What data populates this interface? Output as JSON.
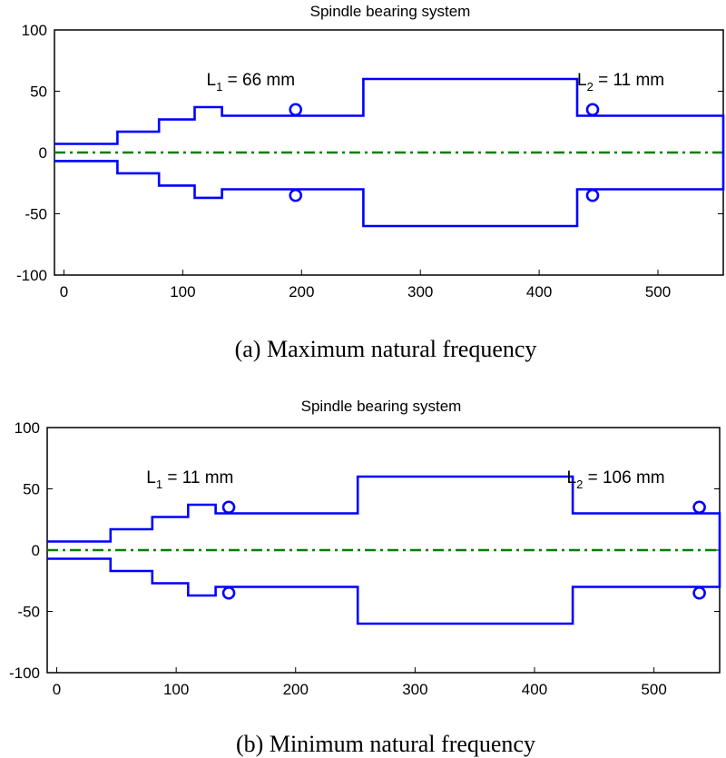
{
  "chart_data": [
    {
      "type": "line",
      "title": "Spindle bearing system",
      "caption": "(a) Maximum natural frequency",
      "xlim": [
        -8,
        555
      ],
      "ylim": [
        -100,
        100
      ],
      "xticks": [
        0,
        100,
        200,
        300,
        400,
        500
      ],
      "yticks": [
        -100,
        -50,
        0,
        50,
        100
      ],
      "shaft_profile": {
        "x": [
          -8,
          45,
          45,
          80,
          80,
          110,
          110,
          133,
          133,
          252,
          252,
          432,
          432,
          555,
          555
        ],
        "y": [
          7,
          7,
          17,
          17,
          27,
          27,
          37,
          37,
          30,
          30,
          60,
          60,
          30,
          30,
          0
        ]
      },
      "bearings_x": [
        195,
        445
      ],
      "bearing_y": 35,
      "centerline_y": 0,
      "annotations": [
        {
          "base": "L",
          "sub": "1",
          "rest": " = 66 mm",
          "x": 120,
          "y": 55
        },
        {
          "base": "L",
          "sub": "2",
          "rest": " = 11 mm",
          "x": 432,
          "y": 55
        }
      ],
      "colors": {
        "shaft": "#0000ff",
        "centerline": "#007f00"
      }
    },
    {
      "type": "line",
      "title": "Spindle bearing system",
      "caption": "(b) Minimum natural frequency",
      "xlim": [
        -8,
        555
      ],
      "ylim": [
        -100,
        100
      ],
      "xticks": [
        0,
        100,
        200,
        300,
        400,
        500
      ],
      "yticks": [
        -100,
        -50,
        0,
        50,
        100
      ],
      "shaft_profile": {
        "x": [
          -8,
          45,
          45,
          80,
          80,
          110,
          110,
          133,
          133,
          252,
          252,
          432,
          432,
          555,
          555
        ],
        "y": [
          7,
          7,
          17,
          17,
          27,
          27,
          37,
          37,
          30,
          30,
          60,
          60,
          30,
          30,
          0
        ]
      },
      "bearings_x": [
        144,
        538
      ],
      "bearing_y": 35,
      "centerline_y": 0,
      "annotations": [
        {
          "base": "L",
          "sub": "1",
          "rest": " = 11 mm",
          "x": 75,
          "y": 55
        },
        {
          "base": "L",
          "sub": "2",
          "rest": " = 106 mm",
          "x": 427,
          "y": 55
        }
      ],
      "colors": {
        "shaft": "#0000ff",
        "centerline": "#007f00"
      }
    }
  ]
}
